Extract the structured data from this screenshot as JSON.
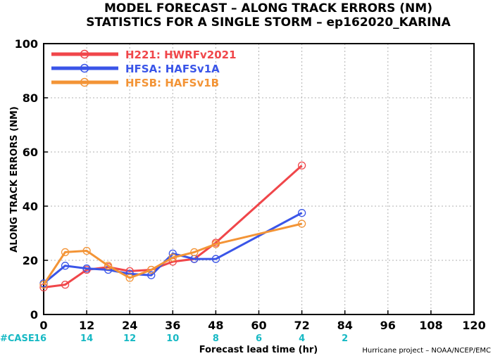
{
  "chart_data": {
    "type": "line",
    "title": "MODEL FORECAST – ALONG TRACK ERRORS (NM)",
    "subtitle": "STATISTICS FOR A SINGLE STORM – ep162020_KARINA",
    "xlabel": "Forecast lead time (hr)",
    "ylabel": "ALONG TRACK ERRORS (NM)",
    "xlim": [
      0,
      120
    ],
    "ylim": [
      0,
      100
    ],
    "xticks": [
      0,
      12,
      24,
      36,
      48,
      60,
      72,
      84,
      96,
      108,
      120
    ],
    "yticks": [
      0,
      20,
      40,
      60,
      80,
      100
    ],
    "grid": true,
    "legend_position": "top-left",
    "case_label": "#CASE",
    "case_x": [
      0,
      12,
      24,
      36,
      48,
      60,
      72,
      84
    ],
    "case_counts": [
      "16",
      "14",
      "12",
      "10",
      "8",
      "6",
      "4",
      "2"
    ],
    "credit": "Hurricane project – NOAA/NCEP/EMC",
    "series": [
      {
        "name": "H221: HWRFv2021",
        "color": "#f0464a",
        "x": [
          0,
          6,
          12,
          18,
          24,
          30,
          36,
          42,
          48,
          72
        ],
        "y": [
          10,
          11,
          16.5,
          17.5,
          16,
          16.5,
          19.5,
          20.5,
          26.5,
          55
        ]
      },
      {
        "name": "HFSA: HAFSv1A",
        "color": "#3a55e8",
        "x": [
          0,
          6,
          12,
          18,
          24,
          30,
          36,
          42,
          48,
          72
        ],
        "y": [
          11.5,
          18,
          17,
          16.5,
          15,
          14.5,
          22.5,
          20.5,
          20.5,
          37.5
        ]
      },
      {
        "name": "HFSB: HAFSv1B",
        "color": "#f39436",
        "x": [
          0,
          6,
          12,
          18,
          24,
          30,
          36,
          42,
          48,
          72
        ],
        "y": [
          11,
          23,
          23.5,
          18,
          13.5,
          16.5,
          21,
          23,
          26,
          33.5
        ]
      }
    ]
  }
}
